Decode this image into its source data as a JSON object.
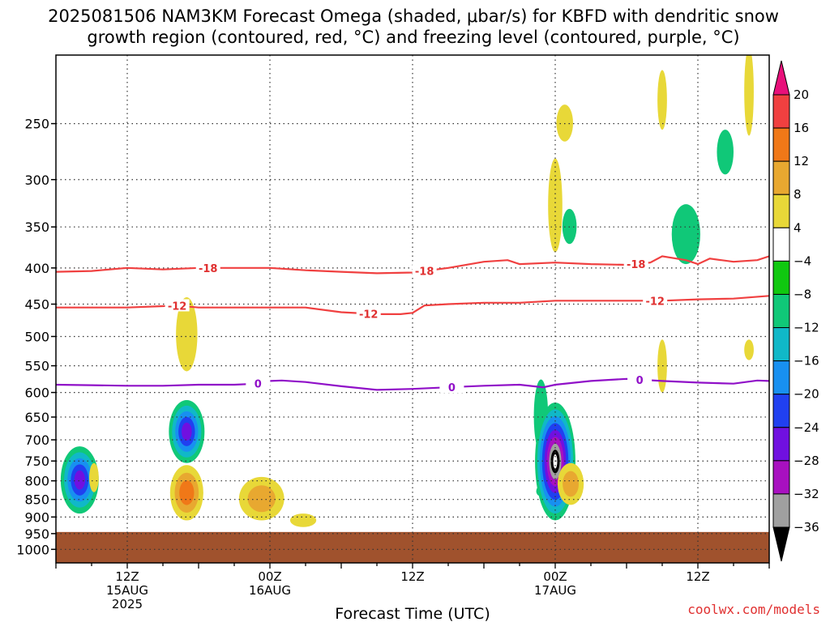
{
  "chart_data": {
    "type": "heatmap",
    "title": {
      "line1": "2025081506 NAM3KM Forecast Omega (shaded, μbar/s) for KBFD with dendritic snow",
      "line2": "growth region (contoured, red, °C) and freezing level (contoured, purple, °C)"
    },
    "xlabel": "Forecast Time (UTC)",
    "credit": "coolwx.com/models",
    "x_range_hours": [
      0,
      60
    ],
    "y_range_hpa": [
      200,
      1045
    ],
    "y_scale": "log-pressure",
    "grid": "dotted",
    "y_ticks": [
      250,
      300,
      350,
      400,
      450,
      500,
      550,
      600,
      650,
      700,
      750,
      800,
      850,
      900,
      950,
      1000
    ],
    "x_ticks": [
      {
        "hour": 6,
        "label": "12Z",
        "sub1": "15AUG",
        "sub2": "2025"
      },
      {
        "hour": 18,
        "label": "00Z",
        "sub1": "16AUG",
        "sub2": ""
      },
      {
        "hour": 30,
        "label": "12Z",
        "sub1": "",
        "sub2": ""
      },
      {
        "hour": 42,
        "label": "00Z",
        "sub1": "17AUG",
        "sub2": ""
      },
      {
        "hour": 54,
        "label": "12Z",
        "sub1": "",
        "sub2": ""
      }
    ],
    "colorbar": {
      "labels": [
        "20",
        "16",
        "12",
        "8",
        "4",
        "−4",
        "−8",
        "−12",
        "−16",
        "−20",
        "−24",
        "−28",
        "−32",
        "−36"
      ],
      "bins": [
        {
          "lo": 16,
          "hi": 20,
          "color": "#f04040"
        },
        {
          "lo": 12,
          "hi": 16,
          "color": "#f07818"
        },
        {
          "lo": 8,
          "hi": 12,
          "color": "#e8a830"
        },
        {
          "lo": 4,
          "hi": 8,
          "color": "#e8d838"
        },
        {
          "lo": -4,
          "hi": 4,
          "color": "#ffffff"
        },
        {
          "lo": -8,
          "hi": -4,
          "color": "#10c810"
        },
        {
          "lo": -12,
          "hi": -8,
          "color": "#10c878"
        },
        {
          "lo": -16,
          "hi": -12,
          "color": "#10b8c8"
        },
        {
          "lo": -20,
          "hi": -16,
          "color": "#1890f0"
        },
        {
          "lo": -24,
          "hi": -20,
          "color": "#2040f0"
        },
        {
          "lo": -28,
          "hi": -24,
          "color": "#7010e0"
        },
        {
          "lo": -32,
          "hi": -28,
          "color": "#a810c0"
        },
        {
          "lo": -36,
          "hi": -32,
          "color": "#a0a0a0"
        }
      ],
      "top_arrow_color": "#e8107a",
      "bottom_arrow_color": "#000000"
    },
    "terrain_color": "#a0522d",
    "surface_pressure_hpa": 945,
    "contours": [
      {
        "name": "-18",
        "color": "#f04040",
        "label_color": "#e03030",
        "points": [
          [
            0,
            405
          ],
          [
            3,
            404
          ],
          [
            6,
            400
          ],
          [
            9,
            402
          ],
          [
            12,
            400
          ],
          [
            15,
            400
          ],
          [
            18,
            400
          ],
          [
            21,
            403
          ],
          [
            24,
            405
          ],
          [
            27,
            407
          ],
          [
            30,
            406
          ],
          [
            33,
            400
          ],
          [
            36,
            392
          ],
          [
            38,
            390
          ],
          [
            39,
            395
          ],
          [
            42,
            393
          ],
          [
            45,
            395
          ],
          [
            48,
            396
          ],
          [
            50,
            393
          ],
          [
            51,
            385
          ],
          [
            53,
            390
          ],
          [
            54,
            395
          ],
          [
            55,
            388
          ],
          [
            57,
            392
          ],
          [
            59,
            390
          ],
          [
            60,
            385
          ]
        ],
        "label_hours": [
          12.8,
          31,
          48.8
        ]
      },
      {
        "name": "-12",
        "color": "#f04040",
        "label_color": "#e03030",
        "points": [
          [
            0,
            455
          ],
          [
            3,
            455
          ],
          [
            6,
            455
          ],
          [
            9,
            453
          ],
          [
            10,
            452
          ],
          [
            12,
            455
          ],
          [
            15,
            455
          ],
          [
            18,
            455
          ],
          [
            21,
            455
          ],
          [
            24,
            462
          ],
          [
            27,
            465
          ],
          [
            29,
            465
          ],
          [
            30,
            463
          ],
          [
            31,
            452
          ],
          [
            33,
            450
          ],
          [
            36,
            448
          ],
          [
            39,
            448
          ],
          [
            42,
            445
          ],
          [
            45,
            445
          ],
          [
            48,
            445
          ],
          [
            51,
            445
          ],
          [
            54,
            443
          ],
          [
            57,
            442
          ],
          [
            60,
            438
          ]
        ],
        "label_hours": [
          10.2,
          26.3,
          50.4
        ]
      },
      {
        "name": "0",
        "color": "#9010c8",
        "label_color": "#9010c8",
        "points": [
          [
            0,
            585
          ],
          [
            3,
            586
          ],
          [
            6,
            587
          ],
          [
            9,
            587
          ],
          [
            12,
            585
          ],
          [
            15,
            585
          ],
          [
            17,
            583
          ],
          [
            18,
            578
          ],
          [
            19,
            577
          ],
          [
            21,
            580
          ],
          [
            24,
            588
          ],
          [
            27,
            595
          ],
          [
            30,
            593
          ],
          [
            33,
            590
          ],
          [
            36,
            587
          ],
          [
            39,
            585
          ],
          [
            41,
            590
          ],
          [
            42,
            585
          ],
          [
            45,
            578
          ],
          [
            48,
            574
          ],
          [
            51,
            578
          ],
          [
            54,
            581
          ],
          [
            57,
            583
          ],
          [
            59,
            577
          ],
          [
            60,
            578
          ]
        ],
        "label_hours": [
          17,
          33.3,
          49.1
        ]
      }
    ],
    "omega_features": [
      {
        "hour": 2.0,
        "p_top": 715,
        "p_bot": 890,
        "w": 1.6,
        "levels": [
          -8,
          -12,
          -16,
          -20,
          -24
        ]
      },
      {
        "hour": 3.2,
        "p_top": 755,
        "p_bot": 830,
        "w": 0.4,
        "levels": [
          4
        ]
      },
      {
        "hour": 11.0,
        "p_top": 615,
        "p_bot": 755,
        "w": 1.5,
        "levels": [
          -8,
          -12,
          -16,
          -20,
          -24
        ]
      },
      {
        "hour": 11.0,
        "p_top": 440,
        "p_bot": 560,
        "w": 0.9,
        "levels": [
          4
        ]
      },
      {
        "hour": 11.0,
        "p_top": 760,
        "p_bot": 910,
        "w": 1.4,
        "levels": [
          4,
          8,
          12
        ]
      },
      {
        "hour": 17.3,
        "p_top": 790,
        "p_bot": 910,
        "w": 1.9,
        "levels": [
          4,
          8
        ]
      },
      {
        "hour": 20.8,
        "p_top": 890,
        "p_bot": 930,
        "w": 1.1,
        "levels": [
          4
        ]
      },
      {
        "hour": 40.8,
        "p_top": 575,
        "p_bot": 730,
        "w": 0.6,
        "levels": [
          -8
        ]
      },
      {
        "hour": 40.7,
        "p_top": 815,
        "p_bot": 840,
        "w": 0.3,
        "levels": [
          -8
        ]
      },
      {
        "hour": 42.0,
        "p_top": 620,
        "p_bot": 910,
        "w": 1.7,
        "levels": [
          -8,
          -12,
          -16,
          -20,
          -24,
          -28,
          -32,
          -36
        ]
      },
      {
        "hour": 43.3,
        "p_top": 755,
        "p_bot": 865,
        "w": 1.1,
        "levels": [
          4,
          8
        ]
      },
      {
        "hour": 42.0,
        "p_top": 280,
        "p_bot": 380,
        "w": 0.6,
        "levels": [
          4
        ]
      },
      {
        "hour": 42.8,
        "p_top": 235,
        "p_bot": 265,
        "w": 0.7,
        "levels": [
          4
        ]
      },
      {
        "hour": 43.2,
        "p_top": 330,
        "p_bot": 370,
        "w": 0.6,
        "levels": [
          -8
        ]
      },
      {
        "hour": 51.0,
        "p_top": 210,
        "p_bot": 255,
        "w": 0.4,
        "levels": [
          4
        ]
      },
      {
        "hour": 51.0,
        "p_top": 505,
        "p_bot": 600,
        "w": 0.4,
        "levels": [
          4
        ]
      },
      {
        "hour": 53.0,
        "p_top": 325,
        "p_bot": 395,
        "w": 1.2,
        "levels": [
          -8
        ]
      },
      {
        "hour": 56.3,
        "p_top": 255,
        "p_bot": 295,
        "w": 0.7,
        "levels": [
          -8
        ]
      },
      {
        "hour": 58.3,
        "p_top": 195,
        "p_bot": 260,
        "w": 0.4,
        "levels": [
          4
        ]
      },
      {
        "hour": 58.3,
        "p_top": 505,
        "p_bot": 540,
        "w": 0.4,
        "levels": [
          4
        ]
      }
    ]
  }
}
